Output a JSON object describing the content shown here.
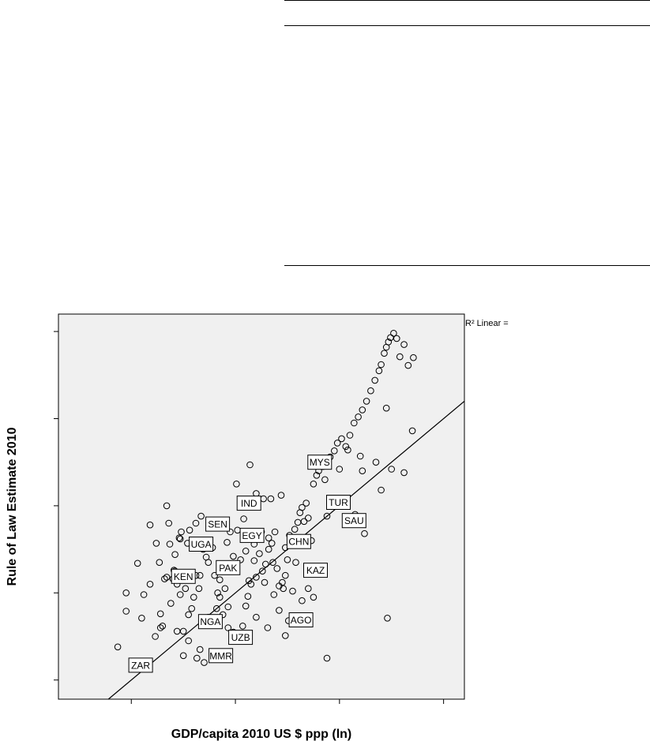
{
  "chart_data": {
    "type": "scatter",
    "xlabel": "GDP/capita 2010 US $ ppp (ln)",
    "ylabel": "Rule of Law Estimate 2010",
    "fit_label": "R² Linear =",
    "fit_line": {
      "slope": 1.0,
      "intercept": 0.0
    },
    "x_ticks": [
      0,
      1,
      2,
      3
    ],
    "y_ticks": [
      0,
      1,
      2,
      3,
      4
    ],
    "xlim": [
      -0.7,
      3.2
    ],
    "ylim": [
      -0.22,
      4.2
    ],
    "grid": false,
    "labeled_points": [
      {
        "label": "MYS",
        "x": 1.81,
        "y": 2.5
      },
      {
        "label": "IND",
        "x": 1.13,
        "y": 2.03
      },
      {
        "label": "TUR",
        "x": 1.99,
        "y": 2.04
      },
      {
        "label": "SAU",
        "x": 2.14,
        "y": 1.83
      },
      {
        "label": "SEN",
        "x": 0.83,
        "y": 1.79
      },
      {
        "label": "EGY",
        "x": 1.16,
        "y": 1.66
      },
      {
        "label": "UGA",
        "x": 0.67,
        "y": 1.56
      },
      {
        "label": "CHN",
        "x": 1.61,
        "y": 1.59
      },
      {
        "label": "KAZ",
        "x": 1.77,
        "y": 1.26
      },
      {
        "label": "KEN",
        "x": 0.5,
        "y": 1.19
      },
      {
        "label": "PAK",
        "x": 0.93,
        "y": 1.29
      },
      {
        "label": "NGA",
        "x": 0.76,
        "y": 0.67
      },
      {
        "label": "AGO",
        "x": 1.63,
        "y": 0.69
      },
      {
        "label": "UZB",
        "x": 1.05,
        "y": 0.49
      },
      {
        "label": "MMR",
        "x": 0.86,
        "y": 0.28
      },
      {
        "label": "ZAR",
        "x": 0.09,
        "y": 0.17
      }
    ],
    "points": [
      [
        -0.13,
        0.38
      ],
      [
        -0.05,
        1.0
      ],
      [
        -0.05,
        0.79
      ],
      [
        0.1,
        0.71
      ],
      [
        0.24,
        1.57
      ],
      [
        0.28,
        0.76
      ],
      [
        0.36,
        1.8
      ],
      [
        0.37,
        1.56
      ],
      [
        0.32,
        1.16
      ],
      [
        0.28,
        0.6
      ],
      [
        0.46,
        1.63
      ],
      [
        0.41,
        1.26
      ],
      [
        0.4,
        1.16
      ],
      [
        0.44,
        1.1
      ],
      [
        0.44,
        0.56
      ],
      [
        0.5,
        0.28
      ],
      [
        0.5,
        0.56
      ],
      [
        0.55,
        0.45
      ],
      [
        0.6,
        0.95
      ],
      [
        0.63,
        0.25
      ],
      [
        0.66,
        0.35
      ],
      [
        0.7,
        0.2
      ],
      [
        0.47,
        0.98
      ],
      [
        0.34,
        1.18
      ],
      [
        0.42,
        1.25
      ],
      [
        0.48,
        1.7
      ],
      [
        0.47,
        1.62
      ],
      [
        0.54,
        1.57
      ],
      [
        0.56,
        1.72
      ],
      [
        0.62,
        1.8
      ],
      [
        0.67,
        1.88
      ],
      [
        0.69,
        1.5
      ],
      [
        0.72,
        1.41
      ],
      [
        0.66,
        1.2
      ],
      [
        0.74,
        1.35
      ],
      [
        0.8,
        1.2
      ],
      [
        0.83,
        1.0
      ],
      [
        0.85,
        0.95
      ],
      [
        0.88,
        0.75
      ],
      [
        0.93,
        0.84
      ],
      [
        0.93,
        0.6
      ],
      [
        0.98,
        0.55
      ],
      [
        1.0,
        0.47
      ],
      [
        1.03,
        0.45
      ],
      [
        1.07,
        0.62
      ],
      [
        1.1,
        0.85
      ],
      [
        1.13,
        1.14
      ],
      [
        1.15,
        1.1
      ],
      [
        1.18,
        1.37
      ],
      [
        1.2,
        1.18
      ],
      [
        1.23,
        1.45
      ],
      [
        1.26,
        1.25
      ],
      [
        1.29,
        1.33
      ],
      [
        1.32,
        1.63
      ],
      [
        1.35,
        1.57
      ],
      [
        1.38,
        1.7
      ],
      [
        1.4,
        1.28
      ],
      [
        1.42,
        1.08
      ],
      [
        1.45,
        1.12
      ],
      [
        1.48,
        1.2
      ],
      [
        1.5,
        1.38
      ],
      [
        1.54,
        1.6
      ],
      [
        1.57,
        1.73
      ],
      [
        1.6,
        1.81
      ],
      [
        1.62,
        1.92
      ],
      [
        1.64,
        1.98
      ],
      [
        1.66,
        1.82
      ],
      [
        1.68,
        2.03
      ],
      [
        1.7,
        1.86
      ],
      [
        1.73,
        1.6
      ],
      [
        1.75,
        2.25
      ],
      [
        1.78,
        2.35
      ],
      [
        1.8,
        2.4
      ],
      [
        1.84,
        2.45
      ],
      [
        1.88,
        2.52
      ],
      [
        1.91,
        2.56
      ],
      [
        1.95,
        2.63
      ],
      [
        1.98,
        2.72
      ],
      [
        2.02,
        2.77
      ],
      [
        2.06,
        2.68
      ],
      [
        2.1,
        2.81
      ],
      [
        2.14,
        2.95
      ],
      [
        2.18,
        3.02
      ],
      [
        2.22,
        3.1
      ],
      [
        2.26,
        3.2
      ],
      [
        2.3,
        3.32
      ],
      [
        2.34,
        3.44
      ],
      [
        2.38,
        3.55
      ],
      [
        2.4,
        3.62
      ],
      [
        2.43,
        3.75
      ],
      [
        2.45,
        3.82
      ],
      [
        2.47,
        3.88
      ],
      [
        2.49,
        3.93
      ],
      [
        2.52,
        3.98
      ],
      [
        2.55,
        3.92
      ],
      [
        2.58,
        3.71
      ],
      [
        2.62,
        3.85
      ],
      [
        2.66,
        3.61
      ],
      [
        2.71,
        3.7
      ],
      [
        2.2,
        2.57
      ],
      [
        2.22,
        2.4
      ],
      [
        2.35,
        2.5
      ],
      [
        2.45,
        3.12
      ],
      [
        2.5,
        2.42
      ],
      [
        2.62,
        2.38
      ],
      [
        2.7,
        2.86
      ],
      [
        2.4,
        2.18
      ],
      [
        2.0,
        2.42
      ],
      [
        1.86,
        2.3
      ],
      [
        2.08,
        2.64
      ],
      [
        0.95,
        1.7
      ],
      [
        1.02,
        1.72
      ],
      [
        1.14,
        2.47
      ],
      [
        1.08,
        1.85
      ],
      [
        1.2,
        2.14
      ],
      [
        1.27,
        2.08
      ],
      [
        1.34,
        2.08
      ],
      [
        1.44,
        2.12
      ],
      [
        1.1,
        1.48
      ],
      [
        0.98,
        1.42
      ],
      [
        1.05,
        1.38
      ],
      [
        1.18,
        1.56
      ],
      [
        1.28,
        1.12
      ],
      [
        1.37,
        0.98
      ],
      [
        1.46,
        1.05
      ],
      [
        1.55,
        1.02
      ],
      [
        1.64,
        0.91
      ],
      [
        1.7,
        1.05
      ],
      [
        1.73,
        1.28
      ],
      [
        1.51,
        0.68
      ],
      [
        1.42,
        0.8
      ],
      [
        1.31,
        0.6
      ],
      [
        1.2,
        0.72
      ],
      [
        1.12,
        0.96
      ],
      [
        2.15,
        1.9
      ],
      [
        2.24,
        1.68
      ],
      [
        2.46,
        0.71
      ],
      [
        1.88,
        0.25
      ],
      [
        1.75,
        0.95
      ],
      [
        1.58,
        1.35
      ],
      [
        1.48,
        1.52
      ],
      [
        1.36,
        1.35
      ],
      [
        1.25,
        1.7
      ],
      [
        0.78,
        1.52
      ],
      [
        0.65,
        1.05
      ],
      [
        0.58,
        0.82
      ],
      [
        0.55,
        0.75
      ],
      [
        0.85,
        1.15
      ],
      [
        0.9,
        1.05
      ],
      [
        0.62,
        1.2
      ],
      [
        0.38,
        0.88
      ],
      [
        0.3,
        0.62
      ],
      [
        0.18,
        1.1
      ],
      [
        0.12,
        0.98
      ],
      [
        0.06,
        1.34
      ],
      [
        0.18,
        1.78
      ],
      [
        0.74,
        0.72
      ],
      [
        0.82,
        0.82
      ],
      [
        1.48,
        0.51
      ],
      [
        1.8,
        1.3
      ],
      [
        1.88,
        1.88
      ],
      [
        1.62,
        1.63
      ],
      [
        1.32,
        1.5
      ],
      [
        1.52,
        1.66
      ],
      [
        0.27,
        1.35
      ],
      [
        0.42,
        1.44
      ],
      [
        0.52,
        1.05
      ],
      [
        0.15,
        0.2
      ],
      [
        0.23,
        0.5
      ],
      [
        0.92,
        1.58
      ],
      [
        0.34,
        2.0
      ],
      [
        1.01,
        2.25
      ]
    ]
  }
}
